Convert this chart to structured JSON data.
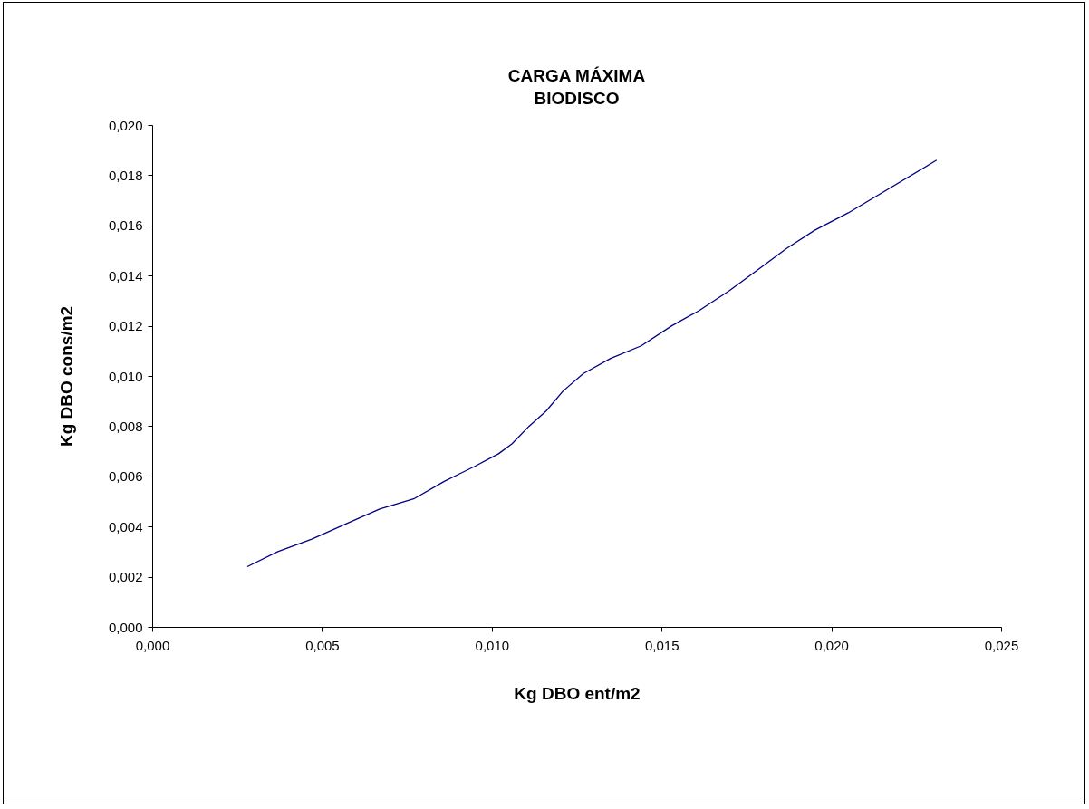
{
  "chart_data": {
    "type": "line",
    "title": [
      "CARGA MÁXIMA",
      "BIODISCO"
    ],
    "xlabel": "Kg DBO ent/m2",
    "ylabel": "Kg DBO cons/m2",
    "x": [
      0.0028,
      0.0037,
      0.0047,
      0.0057,
      0.0067,
      0.0077,
      0.0086,
      0.0095,
      0.0102,
      0.0106,
      0.0111,
      0.0116,
      0.0121,
      0.0127,
      0.0135,
      0.0144,
      0.0153,
      0.0161,
      0.017,
      0.0178,
      0.0187,
      0.0195,
      0.0205,
      0.0231
    ],
    "series": [
      {
        "color": "#000080",
        "values": [
          0.0024,
          0.003,
          0.0035,
          0.0041,
          0.0047,
          0.0051,
          0.0058,
          0.0064,
          0.0069,
          0.0073,
          0.008,
          0.0086,
          0.0094,
          0.0101,
          0.0107,
          0.0112,
          0.012,
          0.0126,
          0.0134,
          0.0142,
          0.0151,
          0.0158,
          0.0165,
          0.0186
        ]
      }
    ],
    "xlim": [
      0,
      0.025
    ],
    "xticks": [
      {
        "value": 0,
        "label": "0,000"
      },
      {
        "value": 0.005,
        "label": "0,005"
      },
      {
        "value": 0.01,
        "label": "0,010"
      },
      {
        "value": 0.015,
        "label": "0,015"
      },
      {
        "value": 0.02,
        "label": "0,020"
      },
      {
        "value": 0.025,
        "label": "0,025"
      }
    ],
    "ylim": [
      0,
      0.02
    ],
    "yticks": [
      {
        "value": 0,
        "label": "0,000"
      },
      {
        "value": 0.002,
        "label": "0,002"
      },
      {
        "value": 0.004,
        "label": "0,004"
      },
      {
        "value": 0.006,
        "label": "0,006"
      },
      {
        "value": 0.008,
        "label": "0,008"
      },
      {
        "value": 0.01,
        "label": "0,010"
      },
      {
        "value": 0.012,
        "label": "0,012"
      },
      {
        "value": 0.014,
        "label": "0,014"
      },
      {
        "value": 0.016,
        "label": "0,016"
      },
      {
        "value": 0.018,
        "label": "0,018"
      },
      {
        "value": 0.02,
        "label": "0,020"
      }
    ],
    "grid": false
  }
}
